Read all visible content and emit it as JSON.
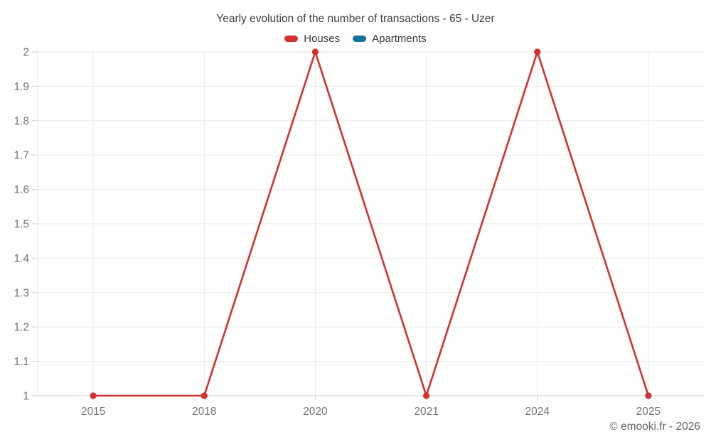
{
  "chart_data": {
    "type": "line",
    "title": "Yearly evolution of the number of transactions - 65 - Uzer",
    "categories": [
      "2015",
      "2018",
      "2020",
      "2021",
      "2024",
      "2025"
    ],
    "series": [
      {
        "name": "Houses",
        "color": "#d3312e",
        "values": [
          1,
          1,
          2,
          1,
          2,
          1
        ]
      },
      {
        "name": "Apartments",
        "color": "#16729e",
        "values": []
      }
    ],
    "xlabel": "",
    "ylabel": "",
    "ylim": [
      1,
      2
    ],
    "ytick_step": 0.1,
    "ytick_labels": [
      "1",
      "1.1",
      "1.2",
      "1.3",
      "1.4",
      "1.5",
      "1.6",
      "1.7",
      "1.8",
      "1.9",
      "2"
    ],
    "grid": true,
    "legend_position": "top"
  },
  "footer": {
    "copyright": "© emooki.fr - 2026"
  },
  "style": {
    "grid_color": "#e9e9e9",
    "axis_color": "#cfcfcf",
    "tick_color": "#cfcfcf",
    "label_color": "#757575",
    "title_color": "#3f3f3f",
    "legend_text_color": "#3a3a3a",
    "copyright_color": "#646464",
    "background": "#ffffff"
  }
}
